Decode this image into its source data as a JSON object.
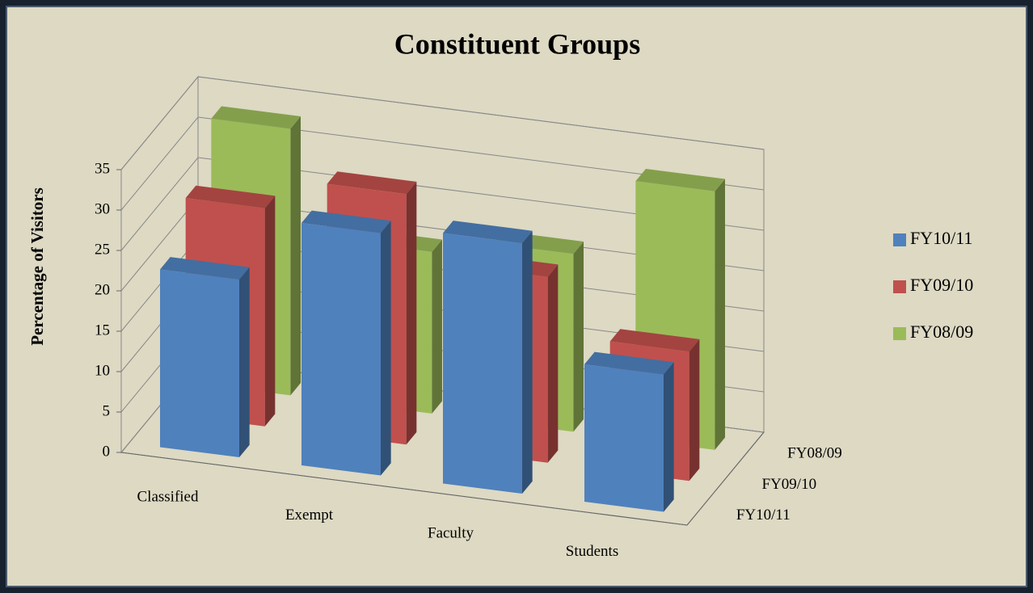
{
  "chart_data": {
    "type": "bar3d",
    "title": "Constituent Groups",
    "y_label": "Percentage of  Visitors",
    "categories": [
      "Classified",
      "Exempt",
      "Faculty",
      "Students"
    ],
    "series": [
      {
        "name": "FY10/11",
        "color": "#4f81bd",
        "values": [
          22,
          30,
          31,
          17
        ]
      },
      {
        "name": "FY09/10",
        "color": "#c0504d",
        "values": [
          27,
          31,
          23,
          16
        ]
      },
      {
        "name": "FY08/09",
        "color": "#9bbb59",
        "values": [
          33,
          20,
          22,
          32
        ]
      }
    ],
    "ylim": [
      0,
      35
    ],
    "yticks": [
      0,
      5,
      10,
      15,
      20,
      25,
      30,
      35
    ],
    "grid": true,
    "legend": "right"
  }
}
